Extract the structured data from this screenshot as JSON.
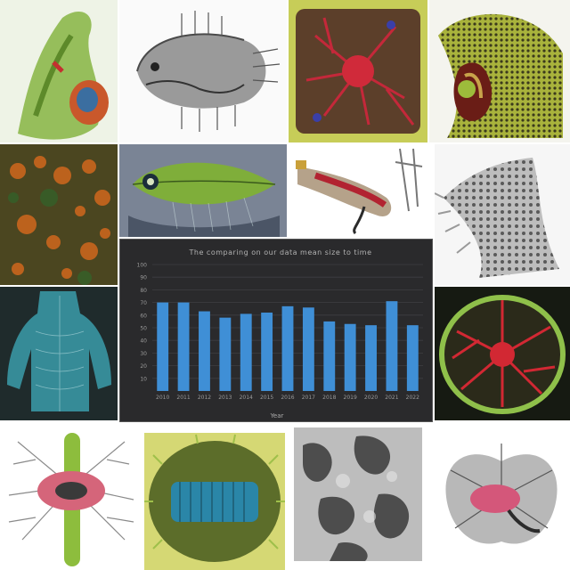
{
  "grid": {
    "tiles": [
      {
        "name": "tile-green-organ-specimen",
        "bg": "#eef3e6",
        "accent": "#7fae3a"
      },
      {
        "name": "tile-gray-fish-skeleton-drawing",
        "bg": "#fafafa",
        "accent": "#6d6d6d"
      },
      {
        "name": "tile-red-vessel-network-olive",
        "bg": "#b7c24a",
        "accent": "#c4283a"
      },
      {
        "name": "tile-yellow-green-textured-organism",
        "bg": "#f4f4ee",
        "accent": "#9ca93a"
      },
      {
        "name": "tile-orange-speckled-tissue",
        "bg": "#3c3b18",
        "accent": "#c9661d"
      },
      {
        "name": "tile-green-fish-illustration",
        "bg": "#6c7686",
        "accent": "#8dbd3d"
      },
      {
        "name": "tile-red-bone-appendage",
        "bg": "#ffffff",
        "accent": "#b22331"
      },
      {
        "name": "tile-gray-porous-structure",
        "bg": "#f6f6f6",
        "accent": "#8a8a8a"
      },
      {
        "name": "tile-blue-torso-scan",
        "bg": "#1e2b2c",
        "accent": "#3b9caa"
      },
      {
        "name": "tile-red-network-green-ring",
        "bg": "#121510",
        "accent": "#d22833"
      },
      {
        "name": "tile-pink-vessel-tree",
        "bg": "#ffffff",
        "accent": "#d5657a"
      },
      {
        "name": "tile-blue-cylinder-specimen",
        "bg": "#c9cf5a",
        "accent": "#2a86a8"
      },
      {
        "name": "tile-gray-tissue-micrograph",
        "bg": "#cfcfcf",
        "accent": "#3a3a3a"
      },
      {
        "name": "tile-pink-winged-specimen",
        "bg": "#ffffff",
        "accent": "#d4577a"
      }
    ]
  },
  "chart": {
    "title_text": "The comparing on our data mean size to time",
    "xlabel_text": "Year"
  },
  "chart_data": {
    "type": "bar",
    "title": "The comparing on our data mean size to time",
    "xlabel": "Year",
    "ylabel": "",
    "categories": [
      "2010",
      "2011",
      "2012",
      "2013",
      "2014",
      "2015",
      "2016",
      "2017",
      "2018",
      "2019",
      "2020",
      "2021",
      "2022"
    ],
    "values": [
      70,
      70,
      63,
      58,
      61,
      62,
      67,
      66,
      55,
      53,
      52,
      71,
      52
    ],
    "ylim": [
      0,
      100
    ],
    "yticks": [
      "100",
      "90",
      "80",
      "70",
      "60",
      "50",
      "40",
      "30",
      "20",
      "10"
    ],
    "bar_color": "#3f8fd6",
    "background": "#2a2a2c",
    "grid": true,
    "legend": "none"
  }
}
